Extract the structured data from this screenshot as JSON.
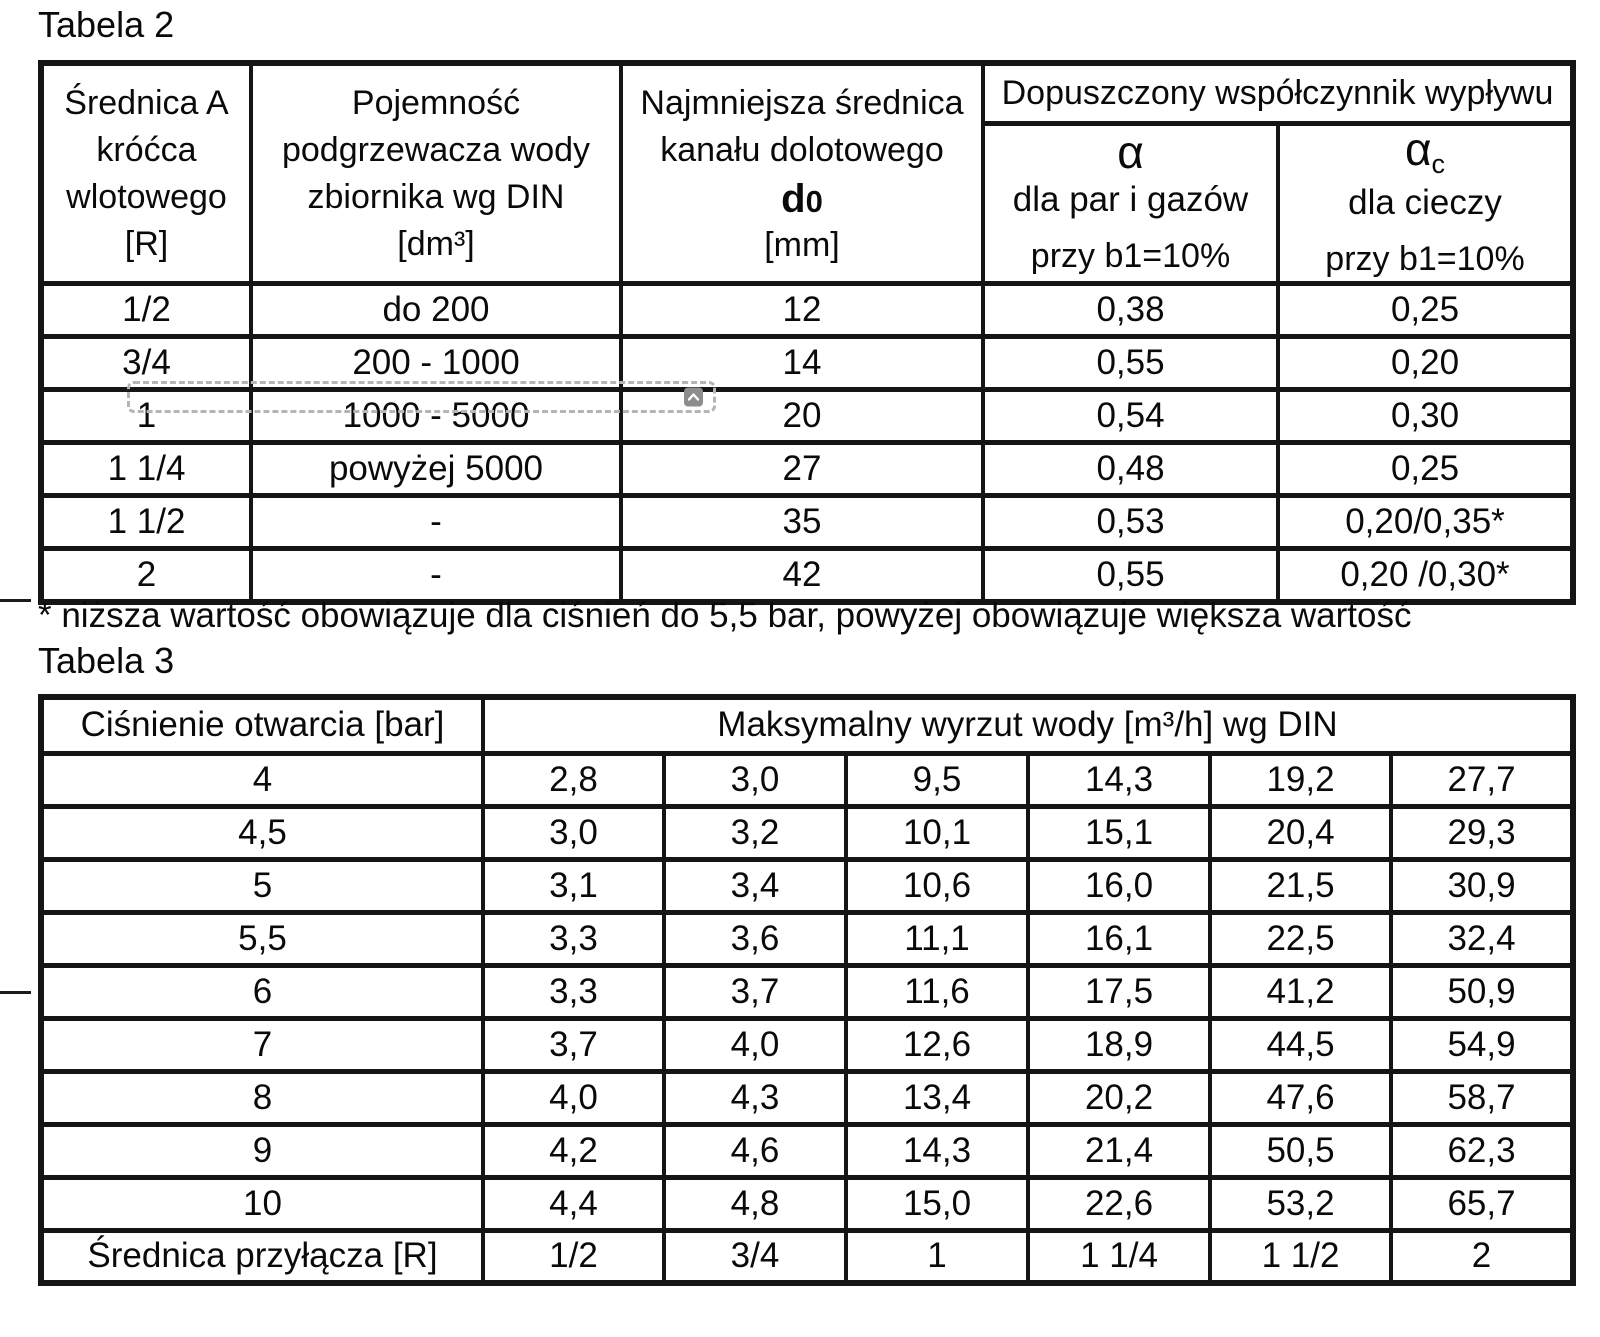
{
  "colors": {
    "page_background": "#ffffff",
    "text": "#0a0a0a",
    "table_border": "#151515",
    "selection_dash": "#b5b5b5",
    "chevron_button_bg": "#8d8d8d",
    "chevron_glyph": "#ffffff"
  },
  "table2": {
    "title": "Tabela 2",
    "headers": {
      "col1": "Średnica A\nkróćca\nwlotowego\n[R]",
      "col2": "Pojemność\npodgrzewacza wody\nzbiornika wg DIN\n[dm³]",
      "col3_top": "Najmniejsza średnica\nkanału dolotowego",
      "col3_symbol_d": "d",
      "col3_symbol_0": "0",
      "col3_unit": "[mm]",
      "group": "Dopuszczony współczynnik wypływu",
      "col4_symbol": "α",
      "col4_line2": "dla par i gazów",
      "col4_line3": "przy b1=10%",
      "col5_symbol": "α",
      "col5_sub": "c",
      "col5_line2": "dla cieczy",
      "col5_line3": "przy b1=10%"
    },
    "rows": [
      [
        "1/2",
        "do 200",
        "12",
        "0,38",
        "0,25"
      ],
      [
        "3/4",
        "200 - 1000",
        "14",
        "0,55",
        "0,20"
      ],
      [
        "1",
        "1000 - 5000",
        "20",
        "0,54",
        "0,30"
      ],
      [
        "1 1/4",
        "powyżej 5000",
        "27",
        "0,48",
        "0,25"
      ],
      [
        "1 1/2",
        "-",
        "35",
        "0,53",
        "0,20/0,35*"
      ],
      [
        "2",
        "-",
        "42",
        "0,55",
        "0,20 /0,30*"
      ]
    ]
  },
  "footnote": "* niższa wartość obowiązuje dla ciśnień do 5,5 bar, powyżej obowiązuje większa wartość",
  "table3": {
    "title": "Tabela 3",
    "headers": {
      "col1": "Ciśnienie otwarcia [bar]",
      "group": "Maksymalny wyrzut wody [m³/h] wg DIN"
    },
    "rows": [
      [
        "4",
        "2,8",
        "3,0",
        "9,5",
        "14,3",
        "19,2",
        "27,7"
      ],
      [
        "4,5",
        "3,0",
        "3,2",
        "10,1",
        "15,1",
        "20,4",
        "29,3"
      ],
      [
        "5",
        "3,1",
        "3,4",
        "10,6",
        "16,0",
        "21,5",
        "30,9"
      ],
      [
        "5,5",
        "3,3",
        "3,6",
        "11,1",
        "16,1",
        "22,5",
        "32,4"
      ],
      [
        "6",
        "3,3",
        "3,7",
        "11,6",
        "17,5",
        "41,2",
        "50,9"
      ],
      [
        "7",
        "3,7",
        "4,0",
        "12,6",
        "18,9",
        "44,5",
        "54,9"
      ],
      [
        "8",
        "4,0",
        "4,3",
        "13,4",
        "20,2",
        "47,6",
        "58,7"
      ],
      [
        "9",
        "4,2",
        "4,6",
        "14,3",
        "21,4",
        "50,5",
        "62,3"
      ],
      [
        "10",
        "4,4",
        "4,8",
        "15,0",
        "22,6",
        "53,2",
        "65,7"
      ]
    ],
    "footer": [
      [
        "Średnica przyłącza [R]",
        "1/2",
        "3/4",
        "1",
        "1 1/4",
        "1 1/2",
        "2"
      ]
    ]
  },
  "overlay": {
    "chevron_icon": "chevron-up"
  }
}
